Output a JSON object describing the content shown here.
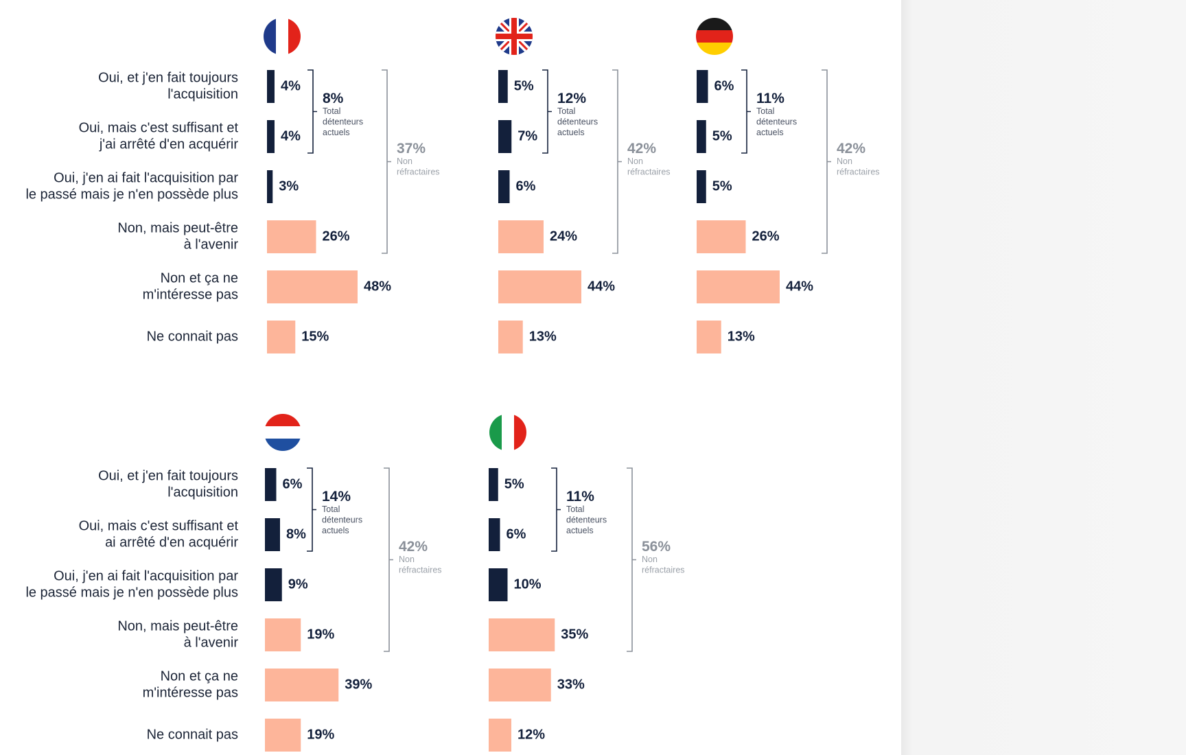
{
  "chart_data": [
    {
      "type": "bar",
      "categories": [
        [
          "Oui, et j'en fait toujours",
          "l'acquisition"
        ],
        [
          "Oui, mais c'est suffisant et",
          "j'ai arrêté d'en acquérir"
        ],
        [
          "Oui, j'en ai fait l'acquisition par",
          "le passé mais je n'en possède plus"
        ],
        [
          "Non, mais peut-être",
          "à l'avenir"
        ],
        [
          "Non et ça ne",
          "m'intéresse pas"
        ],
        [
          "Ne connait pas"
        ]
      ],
      "values": [
        4,
        4,
        3,
        26,
        48,
        15
      ],
      "value_labels": [
        "4%",
        "4%",
        "3%",
        "26%",
        "48%",
        "15%"
      ],
      "colors": [
        "#13203b",
        "#13203b",
        "#13203b",
        "#fdb59a",
        "#fdb59a",
        "#fdb59a"
      ],
      "annotations": [
        {
          "value": 8,
          "label": "8%",
          "lines": [
            "Total",
            "détenteurs",
            "actuels"
          ],
          "color": "#13203b"
        },
        {
          "value": 37,
          "label": "37%",
          "lines": [
            "Non",
            "réfractaires"
          ],
          "color": "#8a9099"
        }
      ]
    },
    {
      "type": "bar",
      "values": [
        5,
        7,
        6,
        24,
        44,
        13
      ],
      "value_labels": [
        "5%",
        "7%",
        "6%",
        "24%",
        "44%",
        "13%"
      ],
      "colors": [
        "#13203b",
        "#13203b",
        "#13203b",
        "#fdb59a",
        "#fdb59a",
        "#fdb59a"
      ],
      "annotations": [
        {
          "value": 12,
          "label": "12%",
          "lines": [
            "Total",
            "détenteurs",
            "actuels"
          ],
          "color": "#13203b"
        },
        {
          "value": 42,
          "label": "42%",
          "lines": [
            "Non",
            "réfractaires"
          ],
          "color": "#8a9099"
        }
      ]
    },
    {
      "type": "bar",
      "values": [
        6,
        5,
        5,
        26,
        44,
        13
      ],
      "value_labels": [
        "6%",
        "5%",
        "5%",
        "26%",
        "44%",
        "13%"
      ],
      "colors": [
        "#13203b",
        "#13203b",
        "#13203b",
        "#fdb59a",
        "#fdb59a",
        "#fdb59a"
      ],
      "annotations": [
        {
          "value": 11,
          "label": "11%",
          "lines": [
            "Total",
            "détenteurs",
            "actuels"
          ],
          "color": "#13203b"
        },
        {
          "value": 42,
          "label": "42%",
          "lines": [
            "Non",
            "réfractaires"
          ],
          "color": "#8a9099"
        }
      ]
    },
    {
      "type": "bar",
      "categories": [
        [
          "Oui, et j'en fait toujours",
          "l'acquisition"
        ],
        [
          "Oui, mais c'est suffisant et",
          "ai arrêté d'en acquérir"
        ],
        [
          "Oui, j'en ai fait l'acquisition par",
          "le passé mais je n'en possède plus"
        ],
        [
          "Non, mais peut-être",
          "à l'avenir"
        ],
        [
          "Non et ça ne",
          "m'intéresse pas"
        ],
        [
          "Ne connait pas"
        ]
      ],
      "values": [
        6,
        8,
        9,
        19,
        39,
        19
      ],
      "value_labels": [
        "6%",
        "8%",
        "9%",
        "19%",
        "39%",
        "19%"
      ],
      "colors": [
        "#13203b",
        "#13203b",
        "#13203b",
        "#fdb59a",
        "#fdb59a",
        "#fdb59a"
      ],
      "annotations": [
        {
          "value": 14,
          "label": "14%",
          "lines": [
            "Total",
            "détenteurs",
            "actuels"
          ],
          "color": "#13203b"
        },
        {
          "value": 42,
          "label": "42%",
          "lines": [
            "Non",
            "réfractaires"
          ],
          "color": "#8a9099"
        }
      ]
    },
    {
      "type": "bar",
      "values": [
        5,
        6,
        10,
        35,
        33,
        12
      ],
      "value_labels": [
        "5%",
        "6%",
        "10%",
        "35%",
        "33%",
        "12%"
      ],
      "colors": [
        "#13203b",
        "#13203b",
        "#13203b",
        "#fdb59a",
        "#fdb59a",
        "#fdb59a"
      ],
      "annotations": [
        {
          "value": 11,
          "label": "11%",
          "lines": [
            "Total",
            "détenteurs",
            "actuels"
          ],
          "color": "#13203b"
        },
        {
          "value": 56,
          "label": "56%",
          "lines": [
            "Non",
            "réfractaires"
          ],
          "color": "#8a9099"
        }
      ]
    }
  ]
}
